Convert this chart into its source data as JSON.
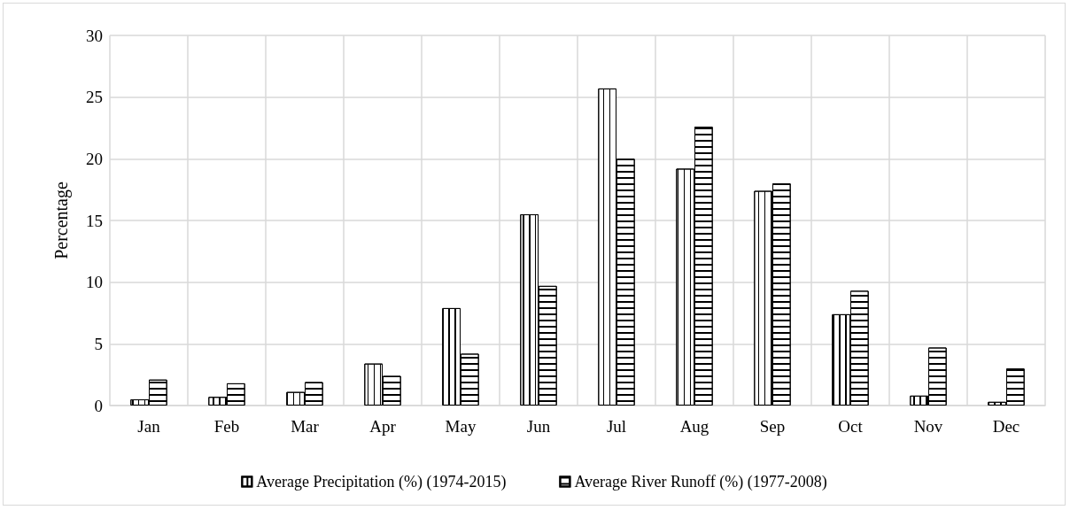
{
  "chart_data": {
    "type": "bar",
    "ylabel": "Percentage",
    "categories": [
      "Jan",
      "Feb",
      "Mar",
      "Apr",
      "May",
      "Jun",
      "Jul",
      "Aug",
      "Sep",
      "Oct",
      "Nov",
      "Dec"
    ],
    "series": [
      {
        "name": "Average Precipitation (%) (1974-2015)",
        "color": "#ffffff",
        "values": [
          0.5,
          0.7,
          1.1,
          3.4,
          7.9,
          15.5,
          25.7,
          19.2,
          17.4,
          7.4,
          0.8,
          0.3
        ]
      },
      {
        "name": "Average River Runoff (%) (1977-2008)",
        "color": "#ffffff",
        "values": [
          2.1,
          1.8,
          1.9,
          2.4,
          4.2,
          9.7,
          20.0,
          22.6,
          18.0,
          9.3,
          4.7,
          3.0
        ]
      }
    ],
    "ylim": [
      0,
      30
    ],
    "yticks": [
      0,
      5,
      10,
      15,
      20,
      25,
      30
    ],
    "grid": true,
    "legend": "bottom"
  }
}
